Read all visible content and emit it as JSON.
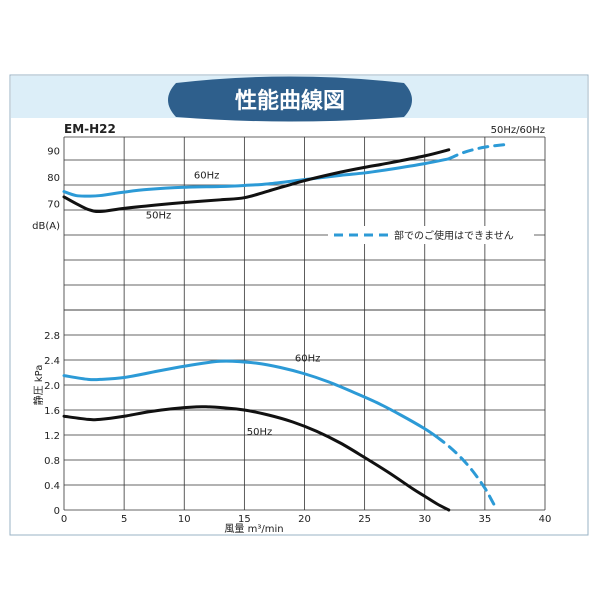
{
  "banner_title": "性能曲線図",
  "model": "EM-H22",
  "freq_note": "50Hz/60Hz",
  "legend_dashed": "部でのご使用はできません",
  "colors": {
    "hz50": "#111111",
    "hz60": "#2c9ad6",
    "banner": "#2e5f8c",
    "band": "#dceef8"
  },
  "chart_data": [
    {
      "type": "line",
      "panel": "noise",
      "ylabel": "dB(A)",
      "yticks": [
        70,
        80,
        90
      ],
      "ylim": [
        30,
        95
      ],
      "xlim": [
        0,
        40
      ],
      "grid": true,
      "series": [
        {
          "name": "60Hz",
          "style": "solid",
          "x": [
            0,
            1,
            2,
            3,
            5,
            7,
            10,
            13,
            15,
            17,
            20,
            23,
            25,
            27,
            30,
            32
          ],
          "y": [
            74.5,
            73,
            72.8,
            73,
            74.3,
            75.3,
            76.1,
            76.4,
            76.8,
            77.4,
            79,
            80.6,
            81.5,
            82.8,
            85,
            86.8
          ]
        },
        {
          "name": "60Hz",
          "style": "dashed",
          "x": [
            32,
            33,
            34,
            35,
            36,
            37
          ],
          "y": [
            86.8,
            88.8,
            90.2,
            91.2,
            91.8,
            92.3
          ]
        },
        {
          "name": "50Hz",
          "style": "solid",
          "x": [
            0,
            1,
            2,
            3,
            5,
            8,
            10,
            13,
            15,
            17,
            20,
            23,
            25,
            27,
            30,
            32
          ],
          "y": [
            72.5,
            70,
            67.8,
            67,
            68.2,
            69.6,
            70.4,
            71.4,
            72.2,
            74.7,
            78.6,
            81.8,
            83.6,
            85.2,
            87.9,
            90.2
          ]
        }
      ],
      "labels": [
        {
          "text": "60Hz",
          "x": 10.8,
          "y": 79.5
        },
        {
          "text": "50Hz",
          "x": 6.8,
          "y": 64.3
        }
      ]
    },
    {
      "type": "line",
      "panel": "pressure",
      "ylabel": "静圧 kPa",
      "yticks": [
        0,
        0.4,
        0.8,
        1.2,
        1.6,
        2.0,
        2.4,
        2.8
      ],
      "ylim": [
        0,
        3.2
      ],
      "xlabel": "風量 m³/min",
      "xticks": [
        0,
        5,
        10,
        15,
        20,
        25,
        30,
        35,
        40
      ],
      "xlim": [
        0,
        40
      ],
      "grid": true,
      "series": [
        {
          "name": "60Hz",
          "style": "solid",
          "x": [
            0,
            2,
            3,
            5,
            8,
            10,
            12,
            13,
            14,
            16,
            18,
            20,
            22,
            24,
            26,
            28,
            30,
            31
          ],
          "y": [
            2.15,
            2.09,
            2.09,
            2.12,
            2.23,
            2.3,
            2.36,
            2.38,
            2.38,
            2.35,
            2.28,
            2.18,
            2.05,
            1.89,
            1.72,
            1.52,
            1.3,
            1.17
          ]
        },
        {
          "name": "60Hz",
          "style": "dashed",
          "x": [
            31,
            32,
            33,
            34,
            35,
            35.5,
            36
          ],
          "y": [
            1.17,
            1.02,
            0.84,
            0.62,
            0.35,
            0.18,
            0
          ]
        },
        {
          "name": "50Hz",
          "style": "solid",
          "x": [
            0,
            2,
            3,
            5,
            7,
            9,
            11,
            12,
            13,
            15,
            17,
            19,
            21,
            23,
            25,
            27,
            29,
            30,
            31,
            32
          ],
          "y": [
            1.5,
            1.45,
            1.45,
            1.5,
            1.57,
            1.62,
            1.65,
            1.65,
            1.64,
            1.6,
            1.52,
            1.41,
            1.26,
            1.07,
            0.84,
            0.6,
            0.34,
            0.22,
            0.1,
            0
          ]
        }
      ],
      "labels": [
        {
          "text": "60Hz",
          "x": 19.2,
          "y": 2.38
        },
        {
          "text": "50Hz",
          "x": 15.2,
          "y": 1.2
        }
      ]
    }
  ]
}
